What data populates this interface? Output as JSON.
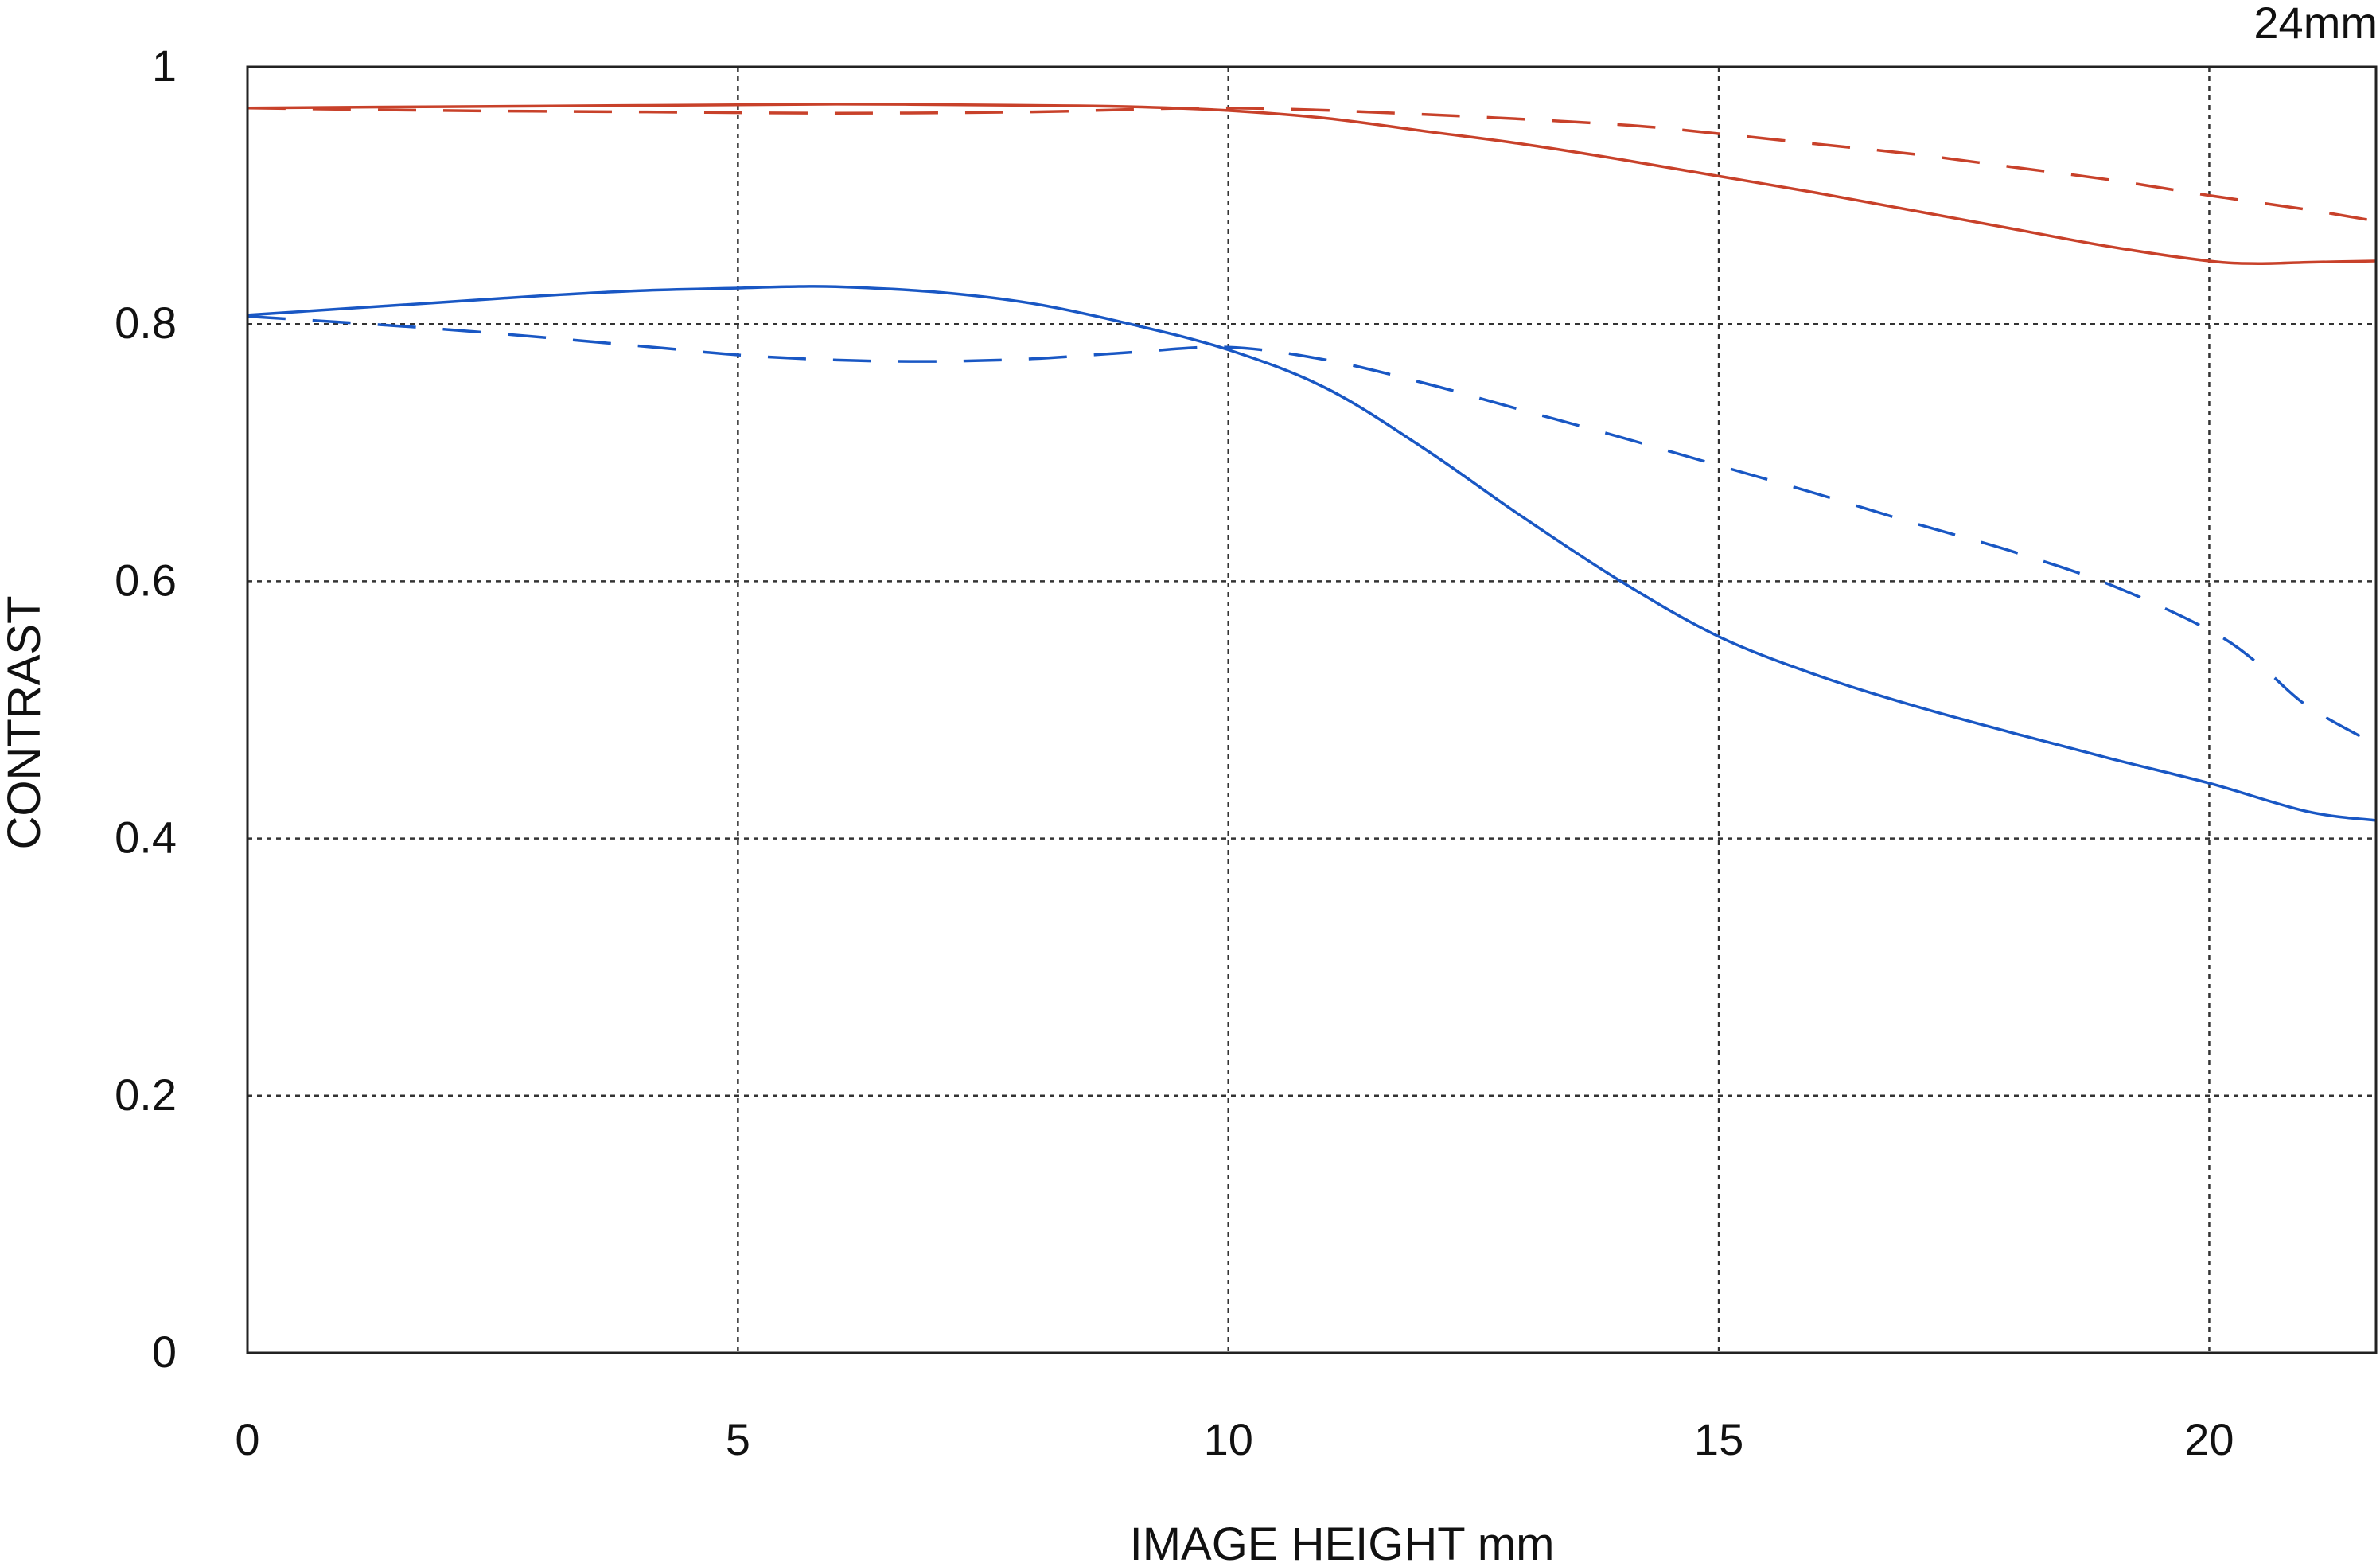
{
  "chart_data": {
    "type": "line",
    "title": "",
    "corner_label": "24mm",
    "xlabel": "IMAGE HEIGHT  mm",
    "ylabel": "CONTRAST",
    "xlim": [
      0,
      21.7
    ],
    "ylim": [
      0,
      1
    ],
    "x_ticks": [
      0,
      5,
      10,
      15,
      20
    ],
    "x_tick_labels": [
      "0",
      "5",
      "10",
      "15",
      "20"
    ],
    "y_ticks": [
      0,
      0.2,
      0.4,
      0.6,
      0.8,
      1
    ],
    "y_tick_labels": [
      "0",
      "0.2",
      "0.4",
      "0.6",
      "0.8",
      "1"
    ],
    "grid": true,
    "legend": "none",
    "series": [
      {
        "color": "#c8412a",
        "dash": "solid",
        "x": [
          0,
          2,
          4,
          6,
          8,
          9,
          10,
          11,
          12,
          13,
          14,
          15,
          16,
          17,
          18,
          19,
          20,
          20.5,
          21,
          21.7
        ],
        "y": [
          0.968,
          0.969,
          0.97,
          0.971,
          0.97,
          0.969,
          0.966,
          0.96,
          0.95,
          0.94,
          0.928,
          0.915,
          0.902,
          0.888,
          0.874,
          0.86,
          0.849,
          0.847,
          0.848,
          0.849
        ]
      },
      {
        "color": "#c8412a",
        "dash": "dashed",
        "x": [
          0,
          2,
          4,
          6,
          8,
          10,
          12,
          14,
          15,
          16,
          17,
          18,
          19,
          20,
          21,
          21.7
        ],
        "y": [
          0.968,
          0.966,
          0.965,
          0.964,
          0.965,
          0.968,
          0.963,
          0.955,
          0.948,
          0.94,
          0.932,
          0.922,
          0.912,
          0.9,
          0.889,
          0.88
        ]
      },
      {
        "color": "#1957c4",
        "dash": "solid",
        "x": [
          0,
          1,
          2,
          3,
          4,
          5,
          5.5,
          6,
          7,
          8,
          9,
          10,
          11,
          12,
          13,
          14,
          15,
          16,
          17,
          18,
          19,
          20,
          21,
          21.7
        ],
        "y": [
          0.807,
          0.812,
          0.817,
          0.822,
          0.826,
          0.828,
          0.829,
          0.829,
          0.825,
          0.816,
          0.8,
          0.78,
          0.75,
          0.703,
          0.65,
          0.6,
          0.557,
          0.527,
          0.503,
          0.482,
          0.462,
          0.443,
          0.421,
          0.414
        ]
      },
      {
        "color": "#1957c4",
        "dash": "dashed",
        "x": [
          0,
          2,
          4,
          5,
          6,
          7,
          8,
          9,
          10,
          11,
          12,
          13,
          14,
          15,
          16,
          17,
          18,
          19,
          20,
          20.5,
          21,
          21.7
        ],
        "y": [
          0.806,
          0.796,
          0.783,
          0.776,
          0.772,
          0.771,
          0.773,
          0.778,
          0.782,
          0.772,
          0.754,
          0.733,
          0.712,
          0.69,
          0.668,
          0.645,
          0.623,
          0.597,
          0.562,
          0.536,
          0.503,
          0.473
        ]
      }
    ]
  }
}
